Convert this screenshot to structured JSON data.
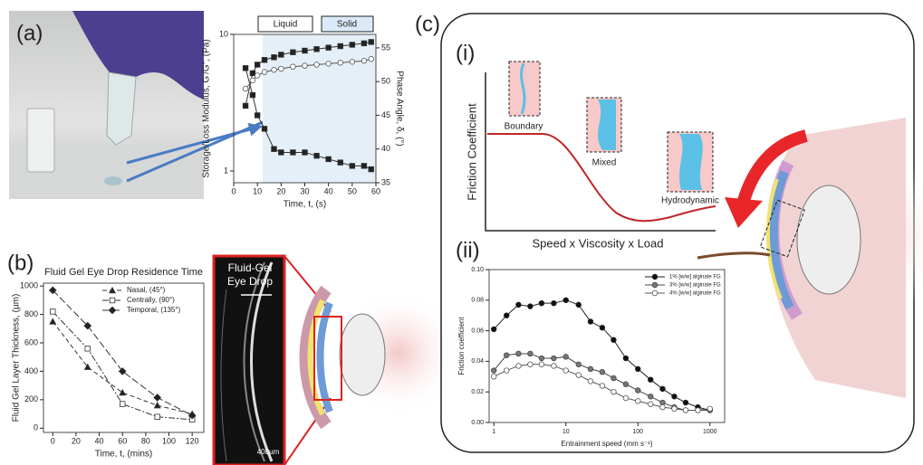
{
  "panel_labels": [
    "(a)",
    "(b)",
    "(c)",
    "(i)",
    "(ii)"
  ],
  "image_text": {
    "eye_drop": [
      "Fluid-Gel",
      "Eye Drop"
    ],
    "scale": "400µm"
  },
  "diagram": {
    "y_label": "Friction Coefficient",
    "x_label": "Speed x Viscosity x Load",
    "regimes": [
      "Boundary",
      "Mixed",
      "Hydrodynamic"
    ]
  },
  "chart_data": [
    {
      "type": "line",
      "annotations": [
        "Liquid",
        "Solid"
      ],
      "x_label": "Time, t, (s)",
      "y_label": "Storage/Loss Modulus, G'/G\", (Pa)",
      "y2_label": "Phase Angle, δ, (°)",
      "x": [
        5,
        8,
        10,
        13,
        17,
        20,
        25,
        30,
        35,
        40,
        45,
        50,
        55,
        58
      ],
      "xlim": [
        0,
        60
      ],
      "xticks": [
        0,
        10,
        20,
        30,
        40,
        50,
        60
      ],
      "yscale": "log",
      "ylim": [
        0.82,
        10
      ],
      "yticks": [
        1,
        10
      ],
      "y2lim": [
        35,
        57
      ],
      "y2ticks": [
        35,
        40,
        45,
        50,
        55
      ],
      "series": [
        {
          "color": "#333",
          "marker": "square",
          "fill": "#222",
          "values": [
            3.0,
            5.2,
            6.0,
            6.5,
            6.8,
            7.1,
            7.4,
            7.6,
            7.8,
            8.0,
            8.2,
            8.4,
            8.6,
            8.8
          ]
        },
        {
          "color": "#555",
          "marker": "circle",
          "fill": "#fff",
          "values": [
            4.0,
            4.6,
            5.0,
            5.3,
            5.5,
            5.6,
            5.8,
            5.9,
            6.0,
            6.1,
            6.2,
            6.3,
            6.4,
            6.6
          ]
        },
        {
          "color": "#333",
          "marker": "square",
          "fill": "#222",
          "axis": "y2",
          "values": [
            52,
            48,
            45,
            43,
            40,
            39.5,
            39.5,
            39.5,
            39,
            38.5,
            38,
            37.5,
            37.5,
            37
          ]
        }
      ]
    },
    {
      "type": "line",
      "title": "Fluid Gel Eye Drop Residence Time",
      "x_label": "Time, t, (mins)",
      "y_label": "Fluid Gel Layer Thickness, (µm)",
      "x": [
        0,
        30,
        60,
        90,
        120
      ],
      "xlim": [
        -8,
        130
      ],
      "xticks": [
        0,
        20,
        40,
        60,
        80,
        100,
        120
      ],
      "ylim": [
        -30,
        1020
      ],
      "yticks": [
        0,
        200,
        400,
        600,
        800,
        1000
      ],
      "legend": "upper right",
      "series": [
        {
          "name": "Nasal, (45°)",
          "color": "#333",
          "marker": "triangle",
          "fill": "#222",
          "dash": "5,3",
          "values": [
            750,
            430,
            250,
            160,
            100
          ]
        },
        {
          "name": "Centrally, (90°)",
          "color": "#333",
          "marker": "square",
          "fill": "#fff",
          "dash": "7,2,2,2",
          "values": [
            820,
            560,
            170,
            80,
            60
          ]
        },
        {
          "name": "Temporal, (135°)",
          "color": "#333",
          "marker": "diamond",
          "fill": "#222",
          "dash": "8,3",
          "values": [
            970,
            720,
            400,
            215,
            90
          ]
        }
      ]
    },
    {
      "type": "line",
      "x_label": "Entrainment speed (mm s⁻¹)",
      "y_label": "Friction coefficient",
      "x": [
        1,
        1.5,
        2.2,
        3.2,
        4.6,
        6.8,
        10,
        15,
        22,
        32,
        46,
        68,
        100,
        150,
        220,
        320,
        460,
        680,
        1000
      ],
      "xscale": "log",
      "xlim": [
        0.86,
        1600
      ],
      "xticks": [
        1,
        10,
        100,
        1000
      ],
      "ylim": [
        0,
        0.1
      ],
      "yticks": [
        {
          "value": 0,
          "label": "0.00"
        },
        {
          "value": 0.02,
          "label": "0.02"
        },
        {
          "value": 0.04,
          "label": "0.04"
        },
        {
          "value": 0.06,
          "label": "0.06"
        },
        {
          "value": 0.08,
          "label": "0.08"
        },
        {
          "value": 0.1,
          "label": "0.10"
        }
      ],
      "legend": "upper right",
      "series": [
        {
          "name": "1% [w/w] alginate FG",
          "color": "#222",
          "marker": "circle",
          "fill": "#111",
          "values": [
            0.061,
            0.07,
            0.077,
            0.076,
            0.078,
            0.078,
            0.08,
            0.077,
            0.066,
            0.062,
            0.054,
            0.042,
            0.035,
            0.028,
            0.022,
            0.017,
            0.013,
            0.01,
            0.008
          ]
        },
        {
          "name": "3% [w/w] alginate FG",
          "color": "#444",
          "marker": "circle",
          "fill": "#777",
          "values": [
            0.034,
            0.044,
            0.045,
            0.045,
            0.042,
            0.042,
            0.043,
            0.038,
            0.035,
            0.033,
            0.029,
            0.025,
            0.021,
            0.017,
            0.013,
            0.01,
            0.008,
            0.008,
            0.008
          ]
        },
        {
          "name": "4% [w/w] alginate FG",
          "color": "#555",
          "marker": "circle",
          "fill": "#fff",
          "values": [
            0.03,
            0.034,
            0.037,
            0.038,
            0.038,
            0.037,
            0.034,
            0.031,
            0.027,
            0.024,
            0.02,
            0.016,
            0.014,
            0.012,
            0.01,
            0.009,
            0.008,
            0.008,
            0.009
          ]
        }
      ]
    }
  ]
}
